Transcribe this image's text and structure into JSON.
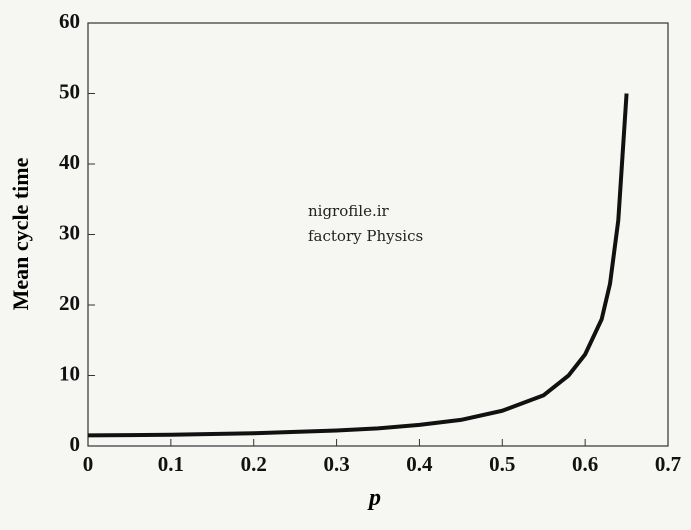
{
  "chart_data": {
    "type": "line",
    "x_label": "p",
    "y_label": "Mean cycle time",
    "annotations": [
      "nigrofile.ir",
      "factory Physics"
    ],
    "x": [
      0,
      0.05,
      0.1,
      0.15,
      0.2,
      0.25,
      0.3,
      0.35,
      0.4,
      0.45,
      0.5,
      0.55,
      0.58,
      0.6,
      0.62,
      0.63,
      0.64,
      0.65
    ],
    "values": [
      1.5,
      1.55,
      1.6,
      1.7,
      1.8,
      2.0,
      2.2,
      2.5,
      3.0,
      3.7,
      5.0,
      7.2,
      10,
      13,
      18,
      23,
      32,
      50
    ],
    "color": "#111111",
    "xlim": [
      0,
      0.7
    ],
    "xticks": [
      0,
      0.1,
      0.2,
      0.3,
      0.4,
      0.5,
      0.6,
      0.7
    ],
    "ylim": [
      0,
      60
    ],
    "yticks": [
      0,
      10,
      20,
      30,
      40,
      50,
      60
    ],
    "grid": false
  }
}
